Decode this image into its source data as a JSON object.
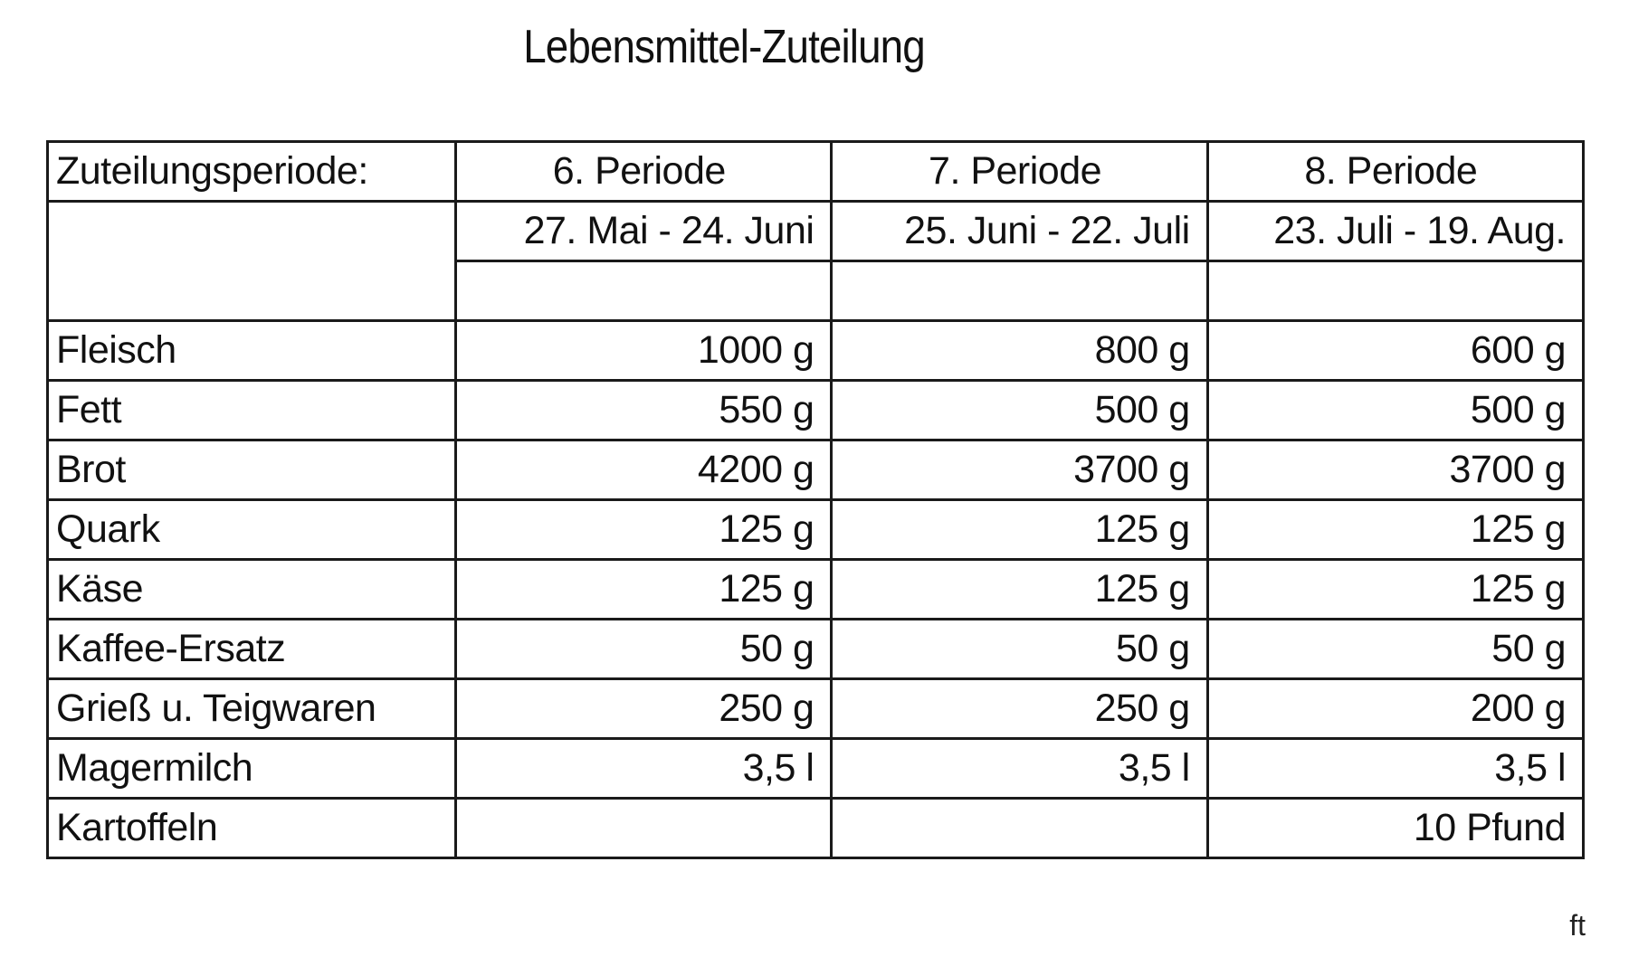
{
  "title": "Lebensmittel-Zuteilung",
  "table": {
    "header_label": "Zuteilungsperiode:",
    "periods": [
      {
        "name": "6. Periode",
        "range": "27. Mai - 24. Juni"
      },
      {
        "name": "7. Periode",
        "range": "25. Juni - 22. Juli"
      },
      {
        "name": "8. Periode",
        "range": "23. Juli - 19. Aug."
      }
    ],
    "rows": [
      {
        "item": "Fleisch",
        "values": [
          "1000 g",
          "800 g",
          "600 g"
        ]
      },
      {
        "item": "Fett",
        "values": [
          "550 g",
          "500 g",
          "500 g"
        ]
      },
      {
        "item": "Brot",
        "values": [
          "4200 g",
          "3700 g",
          "3700 g"
        ]
      },
      {
        "item": "Quark",
        "values": [
          "125 g",
          "125 g",
          "125 g"
        ]
      },
      {
        "item": "Käse",
        "values": [
          "125 g",
          "125 g",
          "125 g"
        ]
      },
      {
        "item": "Kaffee-Ersatz",
        "values": [
          "50 g",
          "50 g",
          "50 g"
        ]
      },
      {
        "item": "Grieß u. Teigwaren",
        "values": [
          "250 g",
          "250 g",
          "200 g"
        ]
      },
      {
        "item": "Magermilch",
        "values": [
          "3,5 l",
          "3,5 l",
          "3,5 l"
        ]
      },
      {
        "item": "Kartoffeln",
        "values": [
          "",
          "",
          "10 Pfund"
        ]
      }
    ]
  },
  "footer": "ft"
}
